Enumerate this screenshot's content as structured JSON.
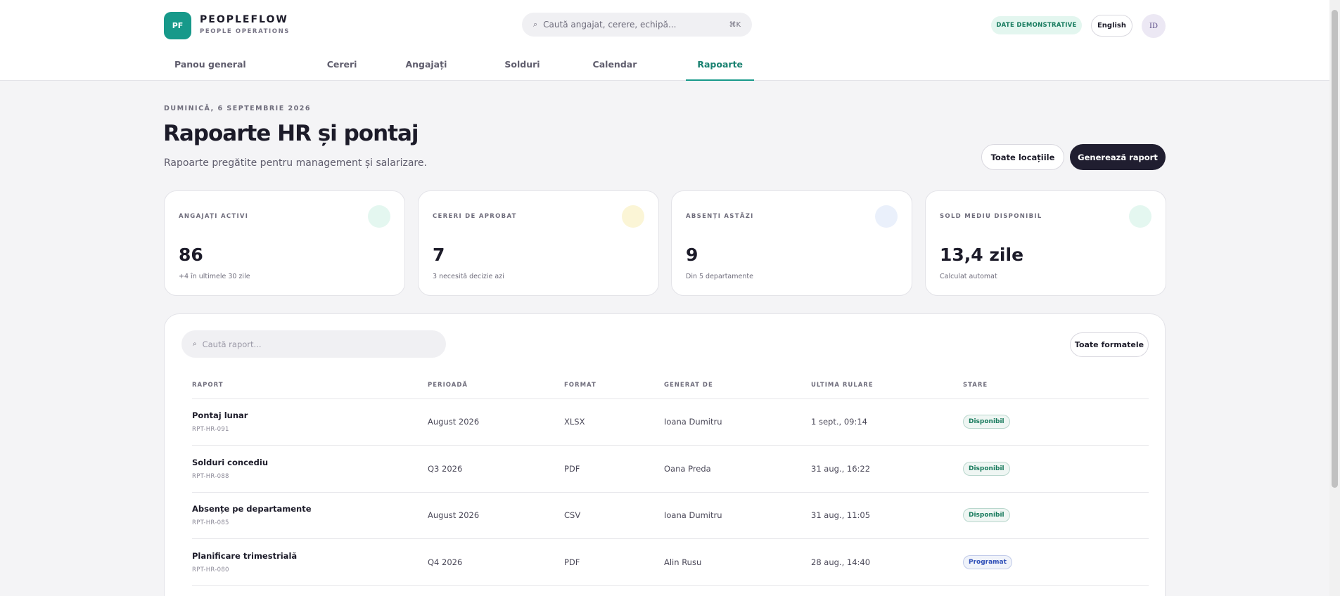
{
  "header": {
    "logo": "PF",
    "brand": "PEOPLEFLOW",
    "tagline": "PEOPLE OPERATIONS",
    "search_icon": "⌕",
    "search_placeholder": "Caută angajat, cerere, echipă...",
    "shortcut": "⌘K",
    "demo_badge": "DATE DEMONSTRATIVE",
    "language": "English",
    "avatar": "ID"
  },
  "nav": [
    {
      "label": "Panou general",
      "active": false
    },
    {
      "label": "Cereri",
      "active": false
    },
    {
      "label": "Angajați",
      "active": false
    },
    {
      "label": "Solduri",
      "active": false
    },
    {
      "label": "Calendar",
      "active": false
    },
    {
      "label": "Rapoarte",
      "active": true
    }
  ],
  "page": {
    "date": "DUMINICĂ, 6 SEPTEMBRIE 2026",
    "title": "Rapoarte HR și pontaj",
    "subtitle": "Rapoarte pregătite pentru management și salarizare.",
    "location_filter": "Toate locațiile",
    "generate_button": "Generează raport"
  },
  "stats": [
    {
      "label": "ANGAJAȚI ACTIVI",
      "value": "86",
      "note": "+4 în ultimele 30 zile",
      "color": "#e4f7f0"
    },
    {
      "label": "CERERI DE APROBAT",
      "value": "7",
      "note": "3 necesită decizie azi",
      "color": "#fbf5d6"
    },
    {
      "label": "ABSENȚI ASTĂZI",
      "value": "9",
      "note": "Din 5 departamente",
      "color": "#eaf0fb"
    },
    {
      "label": "SOLD MEDIU DISPONIBIL",
      "value": "13,4 zile",
      "note": "Calculat automat",
      "color": "#e4f7f0"
    }
  ],
  "reports": {
    "search_icon": "⌕",
    "search_placeholder": "Caută raport...",
    "format_filter": "Toate formatele",
    "columns": [
      "RAPORT",
      "PERIOADĂ",
      "FORMAT",
      "GENERAT DE",
      "ULTIMA RULARE",
      "STARE"
    ],
    "rows": [
      {
        "name": "Pontaj lunar",
        "id": "RPT-HR-091",
        "period": "August 2026",
        "format": "XLSX",
        "author": "Ioana Dumitru",
        "last_run": "1 sept., 09:14",
        "status": "Disponibil",
        "status_color": "#177a5c"
      },
      {
        "name": "Solduri concediu",
        "id": "RPT-HR-088",
        "period": "Q3 2026",
        "format": "PDF",
        "author": "Oana Preda",
        "last_run": "31 aug., 16:22",
        "status": "Disponibil",
        "status_color": "#177a5c"
      },
      {
        "name": "Absențe pe departamente",
        "id": "RPT-HR-085",
        "period": "August 2026",
        "format": "CSV",
        "author": "Ioana Dumitru",
        "last_run": "31 aug., 11:05",
        "status": "Disponibil",
        "status_color": "#177a5c"
      },
      {
        "name": "Planificare trimestrială",
        "id": "RPT-HR-080",
        "period": "Q4 2026",
        "format": "PDF",
        "author": "Alin Rusu",
        "last_run": "28 aug., 14:40",
        "status": "Programat",
        "status_color": "#3050b8"
      }
    ]
  }
}
